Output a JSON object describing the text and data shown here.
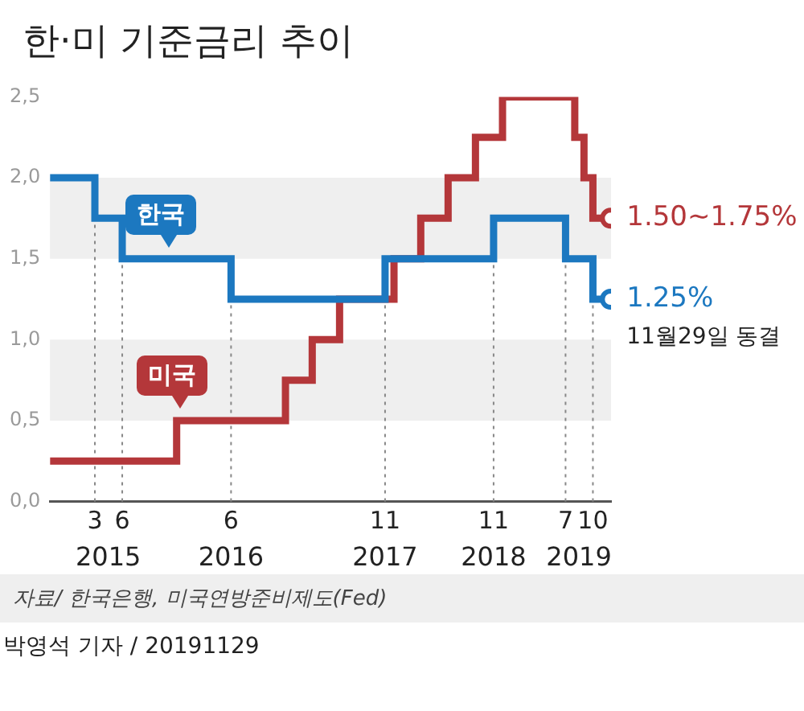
{
  "chart_data": {
    "type": "step",
    "title": "한·미 기준금리 추이",
    "x": [
      "2014-10",
      "2015-03",
      "2015-06",
      "2016-06",
      "2017-11",
      "2018-11",
      "2019-07",
      "2019-10",
      "2019-11-29"
    ],
    "series": [
      {
        "name": "한국",
        "color": "#1c78c0",
        "values": [
          2.0,
          1.75,
          1.5,
          1.25,
          1.5,
          1.75,
          1.5,
          1.25,
          1.25
        ]
      },
      {
        "name": "미국",
        "color": "#b4373a",
        "x": [
          "2014-10",
          "2015-12",
          "2016-12",
          "2017-03",
          "2017-06",
          "2017-12",
          "2018-03",
          "2018-06",
          "2018-09",
          "2018-12",
          "2019-08",
          "2019-09",
          "2019-10",
          "2019-11-29"
        ],
        "values": [
          0.25,
          0.5,
          0.75,
          1.0,
          1.25,
          1.5,
          1.75,
          2.0,
          2.25,
          2.5,
          2.25,
          2.0,
          1.75,
          1.75
        ]
      }
    ],
    "xlim": [
      "2014-10",
      "2019-12"
    ],
    "xticks": [
      {
        "value": "2015-03",
        "label": "3"
      },
      {
        "value": "2015-06",
        "label": "6"
      },
      {
        "value": "2016-06",
        "label": "6"
      },
      {
        "value": "2017-11",
        "label": "11"
      },
      {
        "value": "2018-11",
        "label": "11"
      },
      {
        "value": "2019-07",
        "label": "7"
      },
      {
        "value": "2019-10",
        "label": "10"
      }
    ],
    "x2lim": [
      "2014-10",
      "2019-12"
    ],
    "x2ticks": [
      {
        "value": "2015-04-15",
        "label": "2015"
      },
      {
        "value": "2016-06",
        "label": "2016"
      },
      {
        "value": "2017-11",
        "label": "2017"
      },
      {
        "value": "2018-11",
        "label": "2018"
      },
      {
        "value": "2019-08-15",
        "label": "2019"
      }
    ],
    "ylim": [
      0,
      2.5
    ],
    "yticks": [
      {
        "value": 0,
        "label": "0,0"
      },
      {
        "value": 0.5,
        "label": "0,5"
      },
      {
        "value": 1,
        "label": "1,0"
      },
      {
        "value": 1.5,
        "label": "1,5"
      },
      {
        "value": 2,
        "label": "2,0"
      },
      {
        "value": 2.5,
        "label": "2,5"
      }
    ],
    "bands": [
      {
        "axis": "y",
        "from": 0.5,
        "to": 1.0,
        "color": "#efefef"
      },
      {
        "axis": "y",
        "from": 1.5,
        "to": 2.0,
        "color": "#efefef"
      }
    ],
    "ref_lines": [
      {
        "axis": "x",
        "value": "2015-03",
        "color": "#888888",
        "line_style": "dotted"
      },
      {
        "axis": "x",
        "value": "2015-06",
        "color": "#888888",
        "line_style": "dotted"
      },
      {
        "axis": "x",
        "value": "2016-06",
        "color": "#888888",
        "line_style": "dotted"
      },
      {
        "axis": "x",
        "value": "2017-11",
        "color": "#888888",
        "line_style": "dotted"
      },
      {
        "axis": "x",
        "value": "2018-11",
        "color": "#888888",
        "line_style": "dotted"
      },
      {
        "axis": "x",
        "value": "2019-07",
        "color": "#888888",
        "line_style": "dotted"
      },
      {
        "axis": "x",
        "value": "2019-10",
        "color": "#888888",
        "line_style": "dotted"
      }
    ],
    "annotations": [
      {
        "text": "1.50~1.75%",
        "x": "2019-11-29",
        "y": 1.75
      },
      {
        "text": "1.25%",
        "x": "2019-11-29",
        "y": 1.25
      },
      {
        "text": "11월29일 동결",
        "x": "2019-11-29",
        "y": 1.25
      },
      "자료/ 한국은행, 미국연방준비제도(Fed)",
      "박영석 기자 / 20191129"
    ],
    "legend": false,
    "grid": false,
    "line_style": "solid"
  }
}
